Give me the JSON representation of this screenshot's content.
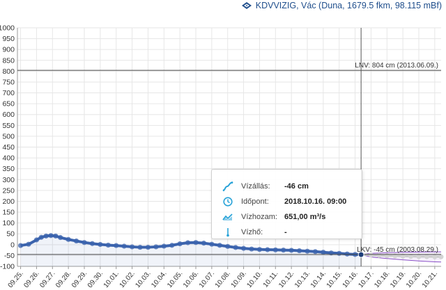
{
  "header": {
    "title": "KDVVIZIG, Vác (Duna, 1679.5 fkm, 98.115 mBf)",
    "logo_icon": "kdvvizig-logo"
  },
  "tooltip": {
    "rows": [
      {
        "icon": "water-level-icon",
        "label": "Vízállás:",
        "value": "-46 cm"
      },
      {
        "icon": "clock-icon",
        "label": "Időpont:",
        "value": "2018.10.16. 09:00"
      },
      {
        "icon": "discharge-icon",
        "label": "Vízhozam:",
        "value": "651,00 m³/s"
      },
      {
        "icon": "thermometer-icon",
        "label": "Vízhő:",
        "value": "-"
      }
    ]
  },
  "chart_data": {
    "type": "line",
    "title": "",
    "xlabel": "",
    "ylabel": "",
    "ylim": [
      -100,
      1000
    ],
    "yticks": [
      -100,
      -50,
      0,
      50,
      100,
      150,
      200,
      250,
      300,
      350,
      400,
      450,
      500,
      550,
      600,
      650,
      700,
      750,
      800,
      850,
      900,
      950,
      1000
    ],
    "xlim": [
      24.8,
      51.4
    ],
    "x_tick_labels": [
      "09.25.",
      "09.26.",
      "09.27.",
      "09.28.",
      "09.29.",
      "09.30.",
      "10.01.",
      "10.02.",
      "10.03.",
      "10.04.",
      "10.05.",
      "10.06.",
      "10.07.",
      "10.08.",
      "10.09.",
      "10.10.",
      "10.11.",
      "10.12.",
      "10.13.",
      "10.14.",
      "10.15.",
      "10.16.",
      "10.17.",
      "10.18.",
      "10.19.",
      "10.20.",
      "10.21."
    ],
    "x_tick_values": [
      25,
      26,
      27,
      28,
      29,
      30,
      31,
      32,
      33,
      34,
      35,
      36,
      37,
      38,
      39,
      40,
      41,
      42,
      43,
      44,
      45,
      46,
      47,
      48,
      49,
      50,
      51
    ],
    "grid": true,
    "reference_lines": [
      {
        "label": "LNV: 804 cm (2013.06.09.)",
        "value": 804,
        "color": "#444444"
      },
      {
        "label": "LKV: -45 cm (2003.08.29.)",
        "value": -45,
        "color": "#444444"
      }
    ],
    "current_time_x": 46.375,
    "series": [
      {
        "kind": "measured",
        "color": "#3b63ad",
        "x": [
          25,
          25.5,
          26,
          26.3,
          26.6,
          26.9,
          27.2,
          27.5,
          28,
          28.5,
          29,
          29.5,
          30,
          30.5,
          31,
          31.5,
          32,
          32.5,
          33,
          33.5,
          34,
          34.5,
          35,
          35.5,
          36,
          36.5,
          37,
          37.5,
          38,
          38.5,
          39,
          39.5,
          40,
          40.5,
          41,
          41.5,
          42,
          42.5,
          43,
          43.5,
          44,
          44.5,
          45,
          45.5,
          46,
          46.375
        ],
        "y": [
          -4,
          2,
          22,
          34,
          40,
          42,
          40,
          33,
          24,
          17,
          10,
          5,
          1,
          -2,
          -4,
          -7,
          -10,
          -12,
          -12,
          -10,
          -7,
          -3,
          4,
          9,
          10,
          7,
          2,
          -3,
          -8,
          -13,
          -17,
          -20,
          -22,
          -23,
          -24,
          -25,
          -26,
          -28,
          -30,
          -32,
          -35,
          -38,
          -40,
          -43,
          -45,
          -46
        ]
      },
      {
        "kind": "forecast",
        "color": "#cccccc",
        "x": [
          46.375,
          47,
          47.5,
          48,
          48.5,
          49,
          49.5,
          50,
          50.5,
          51,
          51.4
        ],
        "y": [
          -46,
          -48,
          -50,
          -51,
          -52,
          -53,
          -54,
          -55,
          -55,
          -56,
          -56
        ]
      },
      {
        "kind": "forecast-upper",
        "color": "#8a4fc7",
        "x": [
          46.375,
          47,
          48,
          49,
          50,
          51,
          51.4
        ],
        "y": [
          -46,
          -40,
          -37,
          -35,
          -34,
          -33,
          -33
        ]
      },
      {
        "kind": "forecast-lower",
        "color": "#8a4fc7",
        "x": [
          46.375,
          47,
          48,
          49,
          50,
          51,
          51.4
        ],
        "y": [
          -46,
          -57,
          -64,
          -70,
          -75,
          -79,
          -80
        ]
      }
    ]
  }
}
